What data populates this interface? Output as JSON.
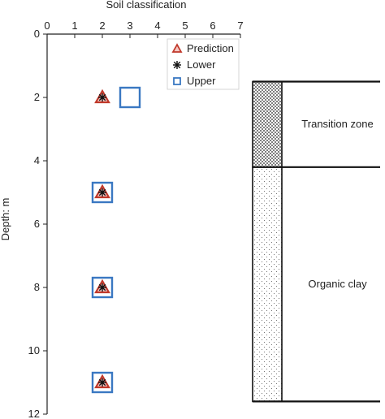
{
  "chart_data": {
    "type": "scatter",
    "xlabel": "Soil classification",
    "ylabel": "Depth: m",
    "xlim": [
      0,
      7
    ],
    "ylim": [
      0,
      12
    ],
    "y_inverted": true,
    "x_axis_position": "top",
    "xticks": [
      "0",
      "1",
      "2",
      "3",
      "4",
      "5",
      "6",
      "7"
    ],
    "yticks": [
      "0",
      "2",
      "4",
      "6",
      "8",
      "10",
      "12"
    ],
    "grid": false,
    "legend_position": "top-right",
    "series": [
      {
        "name": "Prediction",
        "marker": "triangle",
        "color": "#c0392b",
        "points": [
          {
            "x": 2,
            "y": 2
          },
          {
            "x": 2,
            "y": 5
          },
          {
            "x": 2,
            "y": 8
          },
          {
            "x": 2,
            "y": 11
          }
        ]
      },
      {
        "name": "Lower",
        "marker": "asterisk",
        "color": "#111111",
        "points": [
          {
            "x": 2,
            "y": 2
          },
          {
            "x": 2,
            "y": 5
          },
          {
            "x": 2,
            "y": 8
          },
          {
            "x": 2,
            "y": 11
          }
        ]
      },
      {
        "name": "Upper",
        "marker": "square",
        "color": "#3a78c2",
        "points": [
          {
            "x": 3,
            "y": 2
          },
          {
            "x": 2,
            "y": 5
          },
          {
            "x": 2,
            "y": 8
          },
          {
            "x": 2,
            "y": 11
          }
        ]
      }
    ],
    "soil_profile": {
      "layers": [
        {
          "label": "Transition zone",
          "top": 1.5,
          "bottom": 4.2,
          "pattern": "dense-dots"
        },
        {
          "label": "Organic clay",
          "top": 4.2,
          "bottom": 11.6,
          "pattern": "sparse-dots"
        }
      ]
    }
  }
}
